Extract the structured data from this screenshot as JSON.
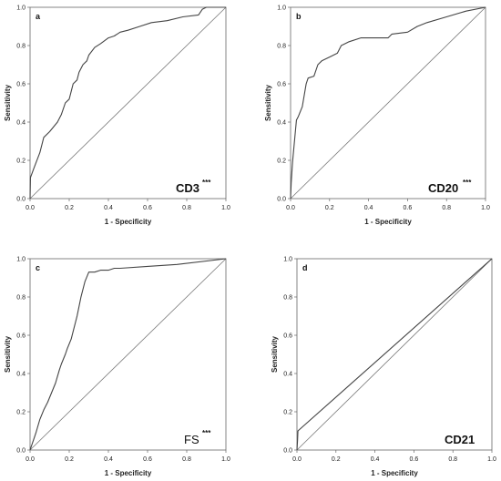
{
  "chart_data": [
    {
      "type": "line",
      "panel_label": "a",
      "marker": "CD3",
      "significance": "***",
      "marker_bold": true,
      "xlabel": "1 - Specificity",
      "ylabel": "Sensitivity",
      "xlim": [
        0,
        1
      ],
      "ylim": [
        0,
        1
      ],
      "xticks": [
        "0.0",
        "0.2",
        "0.4",
        "0.6",
        "0.8",
        "1.0"
      ],
      "yticks": [
        "0.0",
        "0.2",
        "0.4",
        "0.6",
        "0.8",
        "1.0"
      ],
      "grid": false,
      "line_color": "#444444",
      "reference_line": [
        [
          0,
          0
        ],
        [
          1,
          1
        ]
      ],
      "x": [
        0,
        0.002,
        0.02,
        0.05,
        0.07,
        0.1,
        0.14,
        0.16,
        0.18,
        0.2,
        0.22,
        0.24,
        0.25,
        0.27,
        0.29,
        0.3,
        0.33,
        0.36,
        0.4,
        0.43,
        0.46,
        0.5,
        0.56,
        0.62,
        0.7,
        0.78,
        0.86,
        0.88,
        0.9,
        1
      ],
      "y": [
        0,
        0.11,
        0.16,
        0.24,
        0.32,
        0.35,
        0.4,
        0.44,
        0.5,
        0.52,
        0.6,
        0.62,
        0.66,
        0.7,
        0.72,
        0.75,
        0.79,
        0.81,
        0.84,
        0.85,
        0.87,
        0.88,
        0.9,
        0.92,
        0.93,
        0.95,
        0.96,
        0.99,
        1,
        1
      ]
    },
    {
      "type": "line",
      "panel_label": "b",
      "marker": "CD20",
      "significance": "***",
      "marker_bold": true,
      "xlabel": "1 - Specificity",
      "ylabel": "Sensitivity",
      "xlim": [
        0,
        1
      ],
      "ylim": [
        0,
        1
      ],
      "xticks": [
        "0.0",
        "0.2",
        "0.4",
        "0.6",
        "0.8",
        "1.0"
      ],
      "yticks": [
        "0.0",
        "0.2",
        "0.4",
        "0.6",
        "0.8",
        "1.0"
      ],
      "grid": false,
      "line_color": "#444444",
      "reference_line": [
        [
          0,
          0
        ],
        [
          1,
          1
        ]
      ],
      "x": [
        0,
        0.003,
        0.01,
        0.02,
        0.03,
        0.04,
        0.06,
        0.08,
        0.09,
        0.12,
        0.14,
        0.16,
        0.2,
        0.24,
        0.26,
        0.3,
        0.36,
        0.5,
        0.52,
        0.6,
        0.65,
        0.7,
        0.8,
        0.9,
        1
      ],
      "y": [
        0,
        0.08,
        0.19,
        0.3,
        0.41,
        0.43,
        0.48,
        0.6,
        0.63,
        0.64,
        0.7,
        0.72,
        0.74,
        0.76,
        0.8,
        0.82,
        0.84,
        0.84,
        0.86,
        0.87,
        0.9,
        0.92,
        0.95,
        0.98,
        1
      ]
    },
    {
      "type": "line",
      "panel_label": "c",
      "marker": "FS",
      "significance": "***",
      "marker_bold": false,
      "xlabel": "1 - Specificity",
      "ylabel": "Sensitivity",
      "xlim": [
        0,
        1
      ],
      "ylim": [
        0,
        1
      ],
      "xticks": [
        "0.0",
        "0.2",
        "0.4",
        "0.6",
        "0.8",
        "1.0"
      ],
      "yticks": [
        "0.0",
        "0.2",
        "0.4",
        "0.6",
        "0.8",
        "1.0"
      ],
      "grid": false,
      "line_color": "#444444",
      "reference_line": [
        [
          0,
          0
        ],
        [
          1,
          1
        ]
      ],
      "x": [
        0,
        0.01,
        0.02,
        0.03,
        0.05,
        0.07,
        0.09,
        0.11,
        0.13,
        0.15,
        0.16,
        0.18,
        0.19,
        0.21,
        0.22,
        0.24,
        0.26,
        0.28,
        0.3,
        0.33,
        0.36,
        0.4,
        0.43,
        0.46,
        0.6,
        0.75,
        1
      ],
      "y": [
        0,
        0.03,
        0.06,
        0.09,
        0.16,
        0.21,
        0.25,
        0.3,
        0.35,
        0.42,
        0.45,
        0.5,
        0.53,
        0.58,
        0.62,
        0.7,
        0.8,
        0.88,
        0.93,
        0.93,
        0.94,
        0.94,
        0.95,
        0.95,
        0.96,
        0.97,
        1
      ]
    },
    {
      "type": "line",
      "panel_label": "d",
      "marker": "CD21",
      "significance": "",
      "marker_bold": true,
      "xlabel": "1 - Specificity",
      "ylabel": "Sensitivity",
      "xlim": [
        0,
        1
      ],
      "ylim": [
        0,
        1
      ],
      "xticks": [
        "0.0",
        "0.2",
        "0.4",
        "0.6",
        "0.8",
        "1.0"
      ],
      "yticks": [
        "0.0",
        "0.2",
        "0.4",
        "0.6",
        "0.8",
        "1.0"
      ],
      "grid": false,
      "line_color": "#444444",
      "reference_line": [
        [
          0,
          0
        ],
        [
          1,
          1
        ]
      ],
      "x": [
        0,
        0.003,
        0.005,
        1
      ],
      "y": [
        0,
        0.05,
        0.1,
        1
      ]
    }
  ]
}
